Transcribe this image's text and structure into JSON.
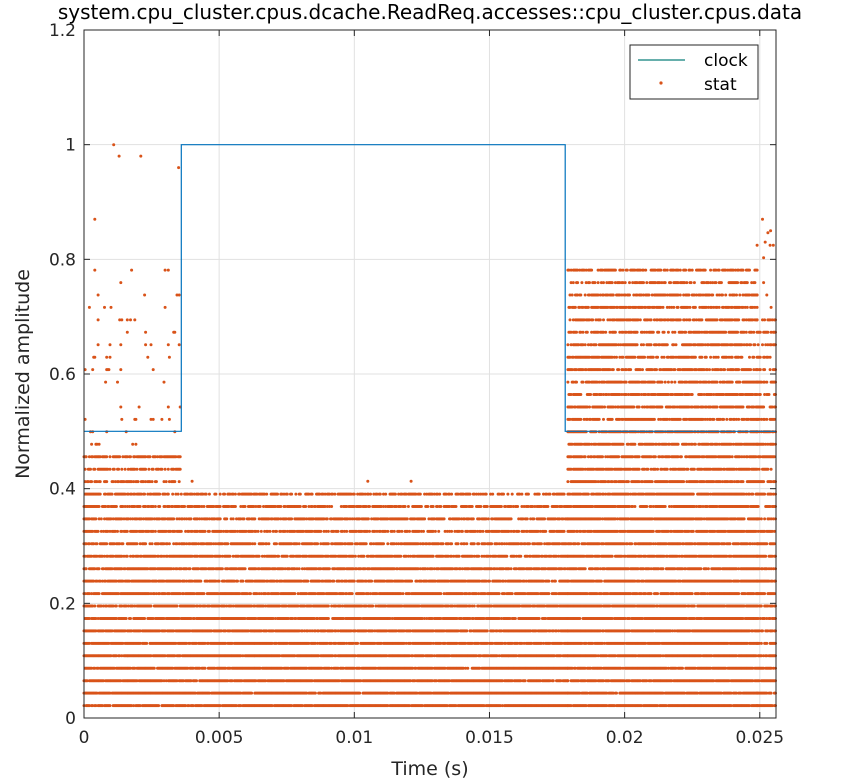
{
  "chart_data": {
    "type": "line",
    "title": "system.cpu_cluster.cpus.dcache.ReadReq.accesses::cpu_cluster.cpus.data",
    "xlabel": "Time (s)",
    "ylabel": "Normalized amplitude",
    "xlim": [
      0,
      0.0256
    ],
    "ylim": [
      0,
      1.2
    ],
    "xticks": [
      0,
      0.005,
      0.01,
      0.015,
      0.02,
      0.025
    ],
    "xtick_labels": [
      "0",
      "0.005",
      "0.01",
      "0.015",
      "0.02",
      "0.025"
    ],
    "yticks": [
      0,
      0.2,
      0.4,
      0.6,
      0.8,
      1,
      1.2
    ],
    "ytick_labels": [
      "0",
      "0.2",
      "0.4",
      "0.6",
      "0.8",
      "1",
      "1.2"
    ],
    "grid": true,
    "legend_position": "top-right",
    "series": [
      {
        "name": "clock",
        "kind": "line",
        "color": "#0072BD",
        "x": [
          0,
          0.0036,
          0.0036,
          0.0178,
          0.0178,
          0.0256
        ],
        "y": [
          0.5,
          0.5,
          1.0,
          1.0,
          0.5,
          0.5
        ]
      },
      {
        "name": "stat",
        "kind": "markers",
        "color": "#D95319",
        "dt": 4e-05,
        "level_step": 0.0217,
        "segments": [
          {
            "x0": 0.0,
            "x1": 0.0036,
            "max_level": 21,
            "density": 0.92,
            "sparse_max_level": 36
          },
          {
            "x0": 0.0036,
            "x1": 0.0179,
            "max_level": 18,
            "density": 0.95,
            "sparse_max_level": 18
          },
          {
            "x0": 0.0179,
            "x1": 0.0249,
            "max_level": 36,
            "density": 0.93,
            "sparse_max_level": 36
          },
          {
            "x0": 0.0249,
            "x1": 0.0256,
            "max_level": 32,
            "density": 0.8,
            "sparse_max_level": 40
          }
        ],
        "outliers": [
          {
            "x": 0.0011,
            "y": 1.0
          },
          {
            "x": 0.0013,
            "y": 0.98
          },
          {
            "x": 0.0021,
            "y": 0.98
          },
          {
            "x": 0.0035,
            "y": 0.96
          },
          {
            "x": 0.0004,
            "y": 0.87
          },
          {
            "x": 0.0105,
            "y": 0.413
          },
          {
            "x": 0.0121,
            "y": 0.413
          },
          {
            "x": 0.004,
            "y": 0.413
          },
          {
            "x": 0.0251,
            "y": 0.87
          },
          {
            "x": 0.0254,
            "y": 0.85
          },
          {
            "x": 0.0252,
            "y": 0.83
          }
        ]
      }
    ]
  }
}
